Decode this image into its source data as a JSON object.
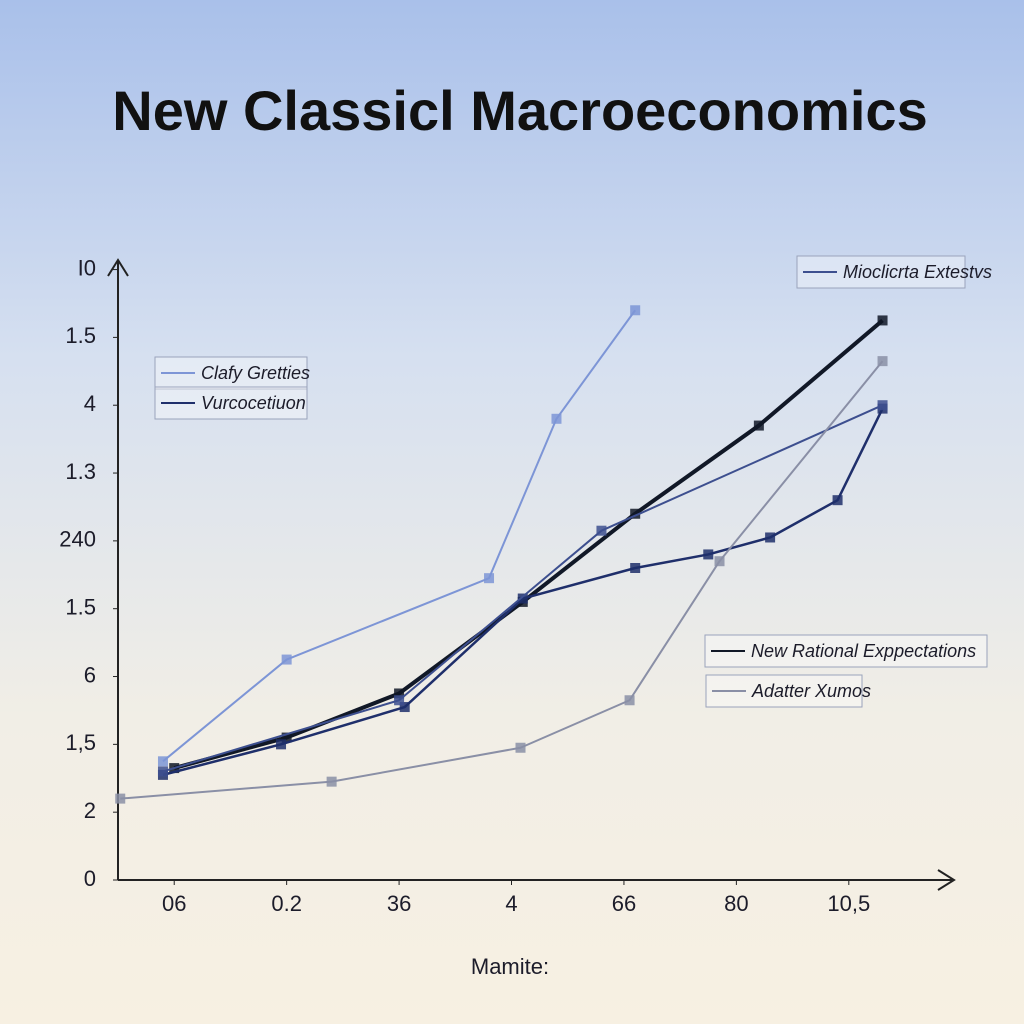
{
  "chart_data": {
    "type": "line",
    "title": "New Classicl Macroeconomics",
    "x_label": "Mamite:",
    "xlim": [
      0.5,
      7.9
    ],
    "ylim": [
      0,
      9.2
    ],
    "xticks": [
      {
        "value": 1,
        "label": "06"
      },
      {
        "value": 2,
        "label": "0.2"
      },
      {
        "value": 3,
        "label": "36"
      },
      {
        "value": 4,
        "label": "4"
      },
      {
        "value": 5,
        "label": "66"
      },
      {
        "value": 6,
        "label": "80"
      },
      {
        "value": 7,
        "label": "10,5"
      }
    ],
    "yticks": [
      0,
      {
        "value": 1,
        "label": "2"
      },
      {
        "value": 2,
        "label": "1,5"
      },
      {
        "value": 3,
        "label": "6"
      },
      {
        "value": 4,
        "label": "1.5"
      },
      {
        "value": 5,
        "label": "240"
      },
      {
        "value": 6,
        "label": "1.3"
      },
      {
        "value": 7,
        "label": "4"
      },
      {
        "value": 8,
        "label": "1.5"
      },
      {
        "value": 9,
        "label": "I0"
      }
    ],
    "series": [
      {
        "name": "New Rational Exppectations",
        "color": "#111827",
        "width": 4,
        "x": [
          1,
          2,
          3,
          4.1,
          5.1,
          6.2,
          7.3
        ],
        "values": [
          1.65,
          2.1,
          2.75,
          4.1,
          5.4,
          6.7,
          8.25
        ]
      },
      {
        "name": "Clafy Gretties",
        "color": "#7d95d6",
        "width": 2,
        "x": [
          0.9,
          2,
          3.8,
          4.4,
          5.1
        ],
        "values": [
          1.75,
          3.25,
          4.45,
          6.8,
          8.4
        ]
      },
      {
        "name": "Vurcocetiuon",
        "color": "#1f2f6b",
        "width": 2.5,
        "x": [
          0.9,
          1.95,
          3.05,
          4.1,
          5.1,
          5.75,
          6.3,
          6.9,
          7.3
        ],
        "values": [
          1.55,
          2,
          2.55,
          4.15,
          4.6,
          4.8,
          5.05,
          5.6,
          6.95
        ]
      },
      {
        "name": "Mioclicrta Extestvs",
        "color": "#3d4f8f",
        "width": 2,
        "x": [
          0.9,
          3,
          4.8,
          7.3
        ],
        "values": [
          1.6,
          2.65,
          5.15,
          7
        ]
      },
      {
        "name": "Adatter Xumos",
        "color": "#8a8fa6",
        "width": 2,
        "x": [
          0.52,
          2.4,
          4.08,
          5.05,
          5.85,
          7.3
        ],
        "values": [
          1.2,
          1.45,
          1.95,
          2.65,
          4.7,
          7.65
        ]
      }
    ]
  }
}
